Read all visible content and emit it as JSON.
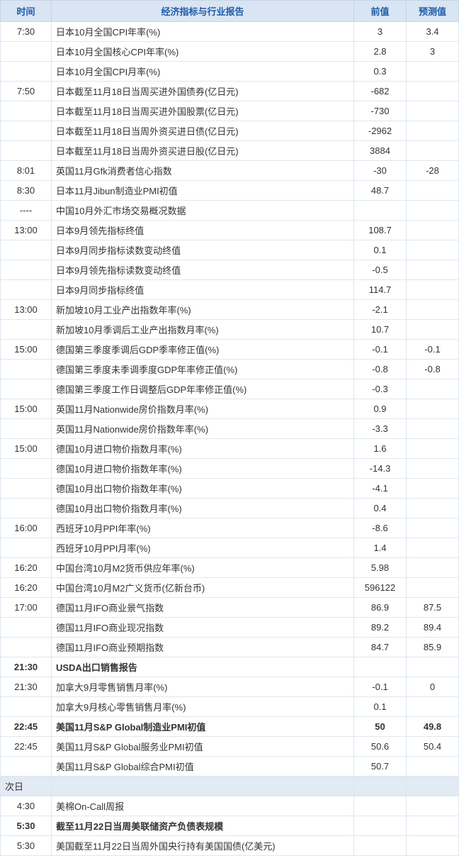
{
  "headers": {
    "time": "时间",
    "desc": "经济指标与行业报告",
    "prev": "前值",
    "forecast": "预测值"
  },
  "section_label": "次日",
  "colors": {
    "header_bg": "#d9e5f3",
    "header_text": "#1f5aa8",
    "border": "#dde7f1",
    "section_bg": "#e2eaf3"
  },
  "rows": [
    {
      "time": "7:30",
      "desc": "日本10月全国CPI年率(%)",
      "prev": "3",
      "forecast": "3.4",
      "bold": false
    },
    {
      "time": "",
      "desc": "日本10月全国核心CPI年率(%)",
      "prev": "2.8",
      "forecast": "3",
      "bold": false
    },
    {
      "time": "",
      "desc": "日本10月全国CPI月率(%)",
      "prev": "0.3",
      "forecast": "",
      "bold": false
    },
    {
      "time": "7:50",
      "desc": "日本截至11月18日当周买进外国债券(亿日元)",
      "prev": "-682",
      "forecast": "",
      "bold": false
    },
    {
      "time": "",
      "desc": "日本截至11月18日当周买进外国股票(亿日元)",
      "prev": "-730",
      "forecast": "",
      "bold": false
    },
    {
      "time": "",
      "desc": "日本截至11月18日当周外资买进日债(亿日元)",
      "prev": "-2962",
      "forecast": "",
      "bold": false
    },
    {
      "time": "",
      "desc": "日本截至11月18日当周外资买进日股(亿日元)",
      "prev": "3884",
      "forecast": "",
      "bold": false
    },
    {
      "time": "8:01",
      "desc": "英国11月Gfk消费者信心指数",
      "prev": "-30",
      "forecast": "-28",
      "bold": false
    },
    {
      "time": "8:30",
      "desc": "日本11月Jibun制造业PMI初值",
      "prev": "48.7",
      "forecast": "",
      "bold": false
    },
    {
      "time": "----",
      "desc": "中国10月外汇市场交易概况数据",
      "prev": "",
      "forecast": "",
      "bold": false
    },
    {
      "time": "13:00",
      "desc": "日本9月领先指标终值",
      "prev": "108.7",
      "forecast": "",
      "bold": false
    },
    {
      "time": "",
      "desc": "日本9月同步指标读数变动终值",
      "prev": "0.1",
      "forecast": "",
      "bold": false
    },
    {
      "time": "",
      "desc": "日本9月领先指标读数变动终值",
      "prev": "-0.5",
      "forecast": "",
      "bold": false
    },
    {
      "time": "",
      "desc": "日本9月同步指标终值",
      "prev": "114.7",
      "forecast": "",
      "bold": false
    },
    {
      "time": "13:00",
      "desc": "新加坡10月工业产出指数年率(%)",
      "prev": "-2.1",
      "forecast": "",
      "bold": false
    },
    {
      "time": "",
      "desc": "新加坡10月季调后工业产出指数月率(%)",
      "prev": "10.7",
      "forecast": "",
      "bold": false
    },
    {
      "time": "15:00",
      "desc": "德国第三季度季调后GDP季率修正值(%)",
      "prev": "-0.1",
      "forecast": "-0.1",
      "bold": false
    },
    {
      "time": "",
      "desc": "德国第三季度未季调季度GDP年率修正值(%)",
      "prev": "-0.8",
      "forecast": "-0.8",
      "bold": false
    },
    {
      "time": "",
      "desc": "德国第三季度工作日调整后GDP年率修正值(%)",
      "prev": "-0.3",
      "forecast": "",
      "bold": false
    },
    {
      "time": "15:00",
      "desc": "英国11月Nationwide房价指数月率(%)",
      "prev": "0.9",
      "forecast": "",
      "bold": false
    },
    {
      "time": "",
      "desc": "英国11月Nationwide房价指数年率(%)",
      "prev": "-3.3",
      "forecast": "",
      "bold": false
    },
    {
      "time": "15:00",
      "desc": "德国10月进口物价指数月率(%)",
      "prev": "1.6",
      "forecast": "",
      "bold": false
    },
    {
      "time": "",
      "desc": "德国10月进口物价指数年率(%)",
      "prev": "-14.3",
      "forecast": "",
      "bold": false
    },
    {
      "time": "",
      "desc": "德国10月出口物价指数年率(%)",
      "prev": "-4.1",
      "forecast": "",
      "bold": false
    },
    {
      "time": "",
      "desc": "德国10月出口物价指数月率(%)",
      "prev": "0.4",
      "forecast": "",
      "bold": false
    },
    {
      "time": "16:00",
      "desc": "西班牙10月PPI年率(%)",
      "prev": "-8.6",
      "forecast": "",
      "bold": false
    },
    {
      "time": "",
      "desc": "西班牙10月PPI月率(%)",
      "prev": "1.4",
      "forecast": "",
      "bold": false
    },
    {
      "time": "16:20",
      "desc": "中国台湾10月M2货币供应年率(%)",
      "prev": "5.98",
      "forecast": "",
      "bold": false
    },
    {
      "time": "16:20",
      "desc": "中国台湾10月M2广义货币(亿新台币)",
      "prev": "596122",
      "forecast": "",
      "bold": false
    },
    {
      "time": "17:00",
      "desc": "德国11月IFO商业景气指数",
      "prev": "86.9",
      "forecast": "87.5",
      "bold": false
    },
    {
      "time": "",
      "desc": "德国11月IFO商业现况指数",
      "prev": "89.2",
      "forecast": "89.4",
      "bold": false
    },
    {
      "time": "",
      "desc": "德国11月IFO商业预期指数",
      "prev": "84.7",
      "forecast": "85.9",
      "bold": false
    },
    {
      "time": "21:30",
      "desc": "USDA出口销售报告",
      "prev": "",
      "forecast": "",
      "bold": true
    },
    {
      "time": "21:30",
      "desc": "加拿大9月零售销售月率(%)",
      "prev": "-0.1",
      "forecast": "0",
      "bold": false
    },
    {
      "time": "",
      "desc": "加拿大9月核心零售销售月率(%)",
      "prev": "0.1",
      "forecast": "",
      "bold": false
    },
    {
      "time": "22:45",
      "desc": "美国11月S&P Global制造业PMI初值",
      "prev": "50",
      "forecast": "49.8",
      "bold": true
    },
    {
      "time": "22:45",
      "desc": "美国11月S&P Global服务业PMI初值",
      "prev": "50.6",
      "forecast": "50.4",
      "bold": false
    },
    {
      "time": "",
      "desc": "美国11月S&P Global综合PMI初值",
      "prev": "50.7",
      "forecast": "",
      "bold": false
    }
  ],
  "rows_next": [
    {
      "time": "4:30",
      "desc": "美棉On-Call周报",
      "prev": "",
      "forecast": "",
      "bold": false
    },
    {
      "time": "5:30",
      "desc": "截至11月22日当周美联储资产负债表规模",
      "prev": "",
      "forecast": "",
      "bold": true
    },
    {
      "time": "5:30",
      "desc": "美国截至11月22日当周外国央行持有美国国债(亿美元)",
      "prev": "",
      "forecast": "",
      "bold": false
    }
  ]
}
